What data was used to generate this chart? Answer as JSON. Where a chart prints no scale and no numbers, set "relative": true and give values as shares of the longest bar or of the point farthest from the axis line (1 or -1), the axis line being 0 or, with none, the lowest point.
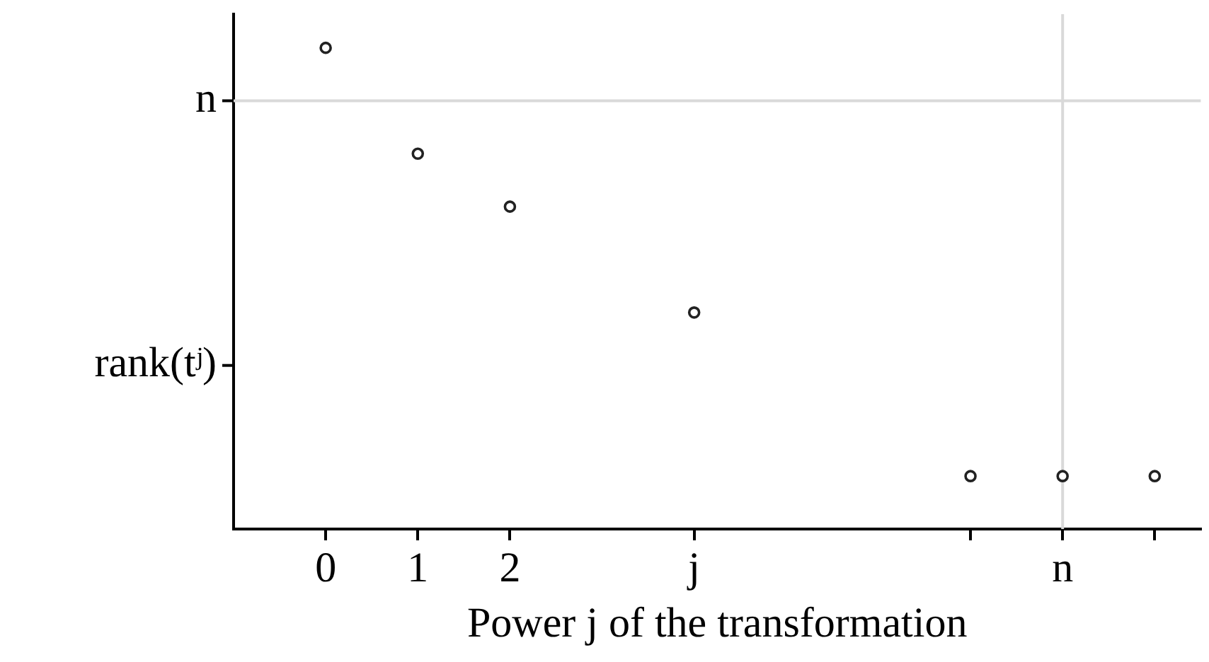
{
  "chart_data": {
    "type": "scatter",
    "xlabel": "Power j of the transformation",
    "x": [
      0,
      1,
      2,
      4,
      7,
      8,
      9
    ],
    "values": [
      1,
      0.78,
      0.67,
      0.45,
      0.11,
      0.11,
      0.11
    ],
    "relative": true,
    "color": "#222222",
    "marker": "circle",
    "grid": false,
    "legend": false,
    "xlim": [
      -1,
      9.5
    ],
    "xticks": [
      0,
      1,
      2,
      {
        "value": 4,
        "label": "j"
      },
      {
        "value": 7,
        "label": null
      },
      {
        "value": 8,
        "label": "n"
      },
      {
        "value": 9,
        "label": null
      }
    ],
    "ref_lines": [
      {
        "axis": "y",
        "value": 0.89,
        "label": "n",
        "color": "#d9d9d9"
      },
      {
        "axis": "y",
        "value": 0.34,
        "label": "rank(tʲ)"
      },
      {
        "axis": "x",
        "value": 8,
        "color": "#d9d9d9"
      }
    ]
  }
}
